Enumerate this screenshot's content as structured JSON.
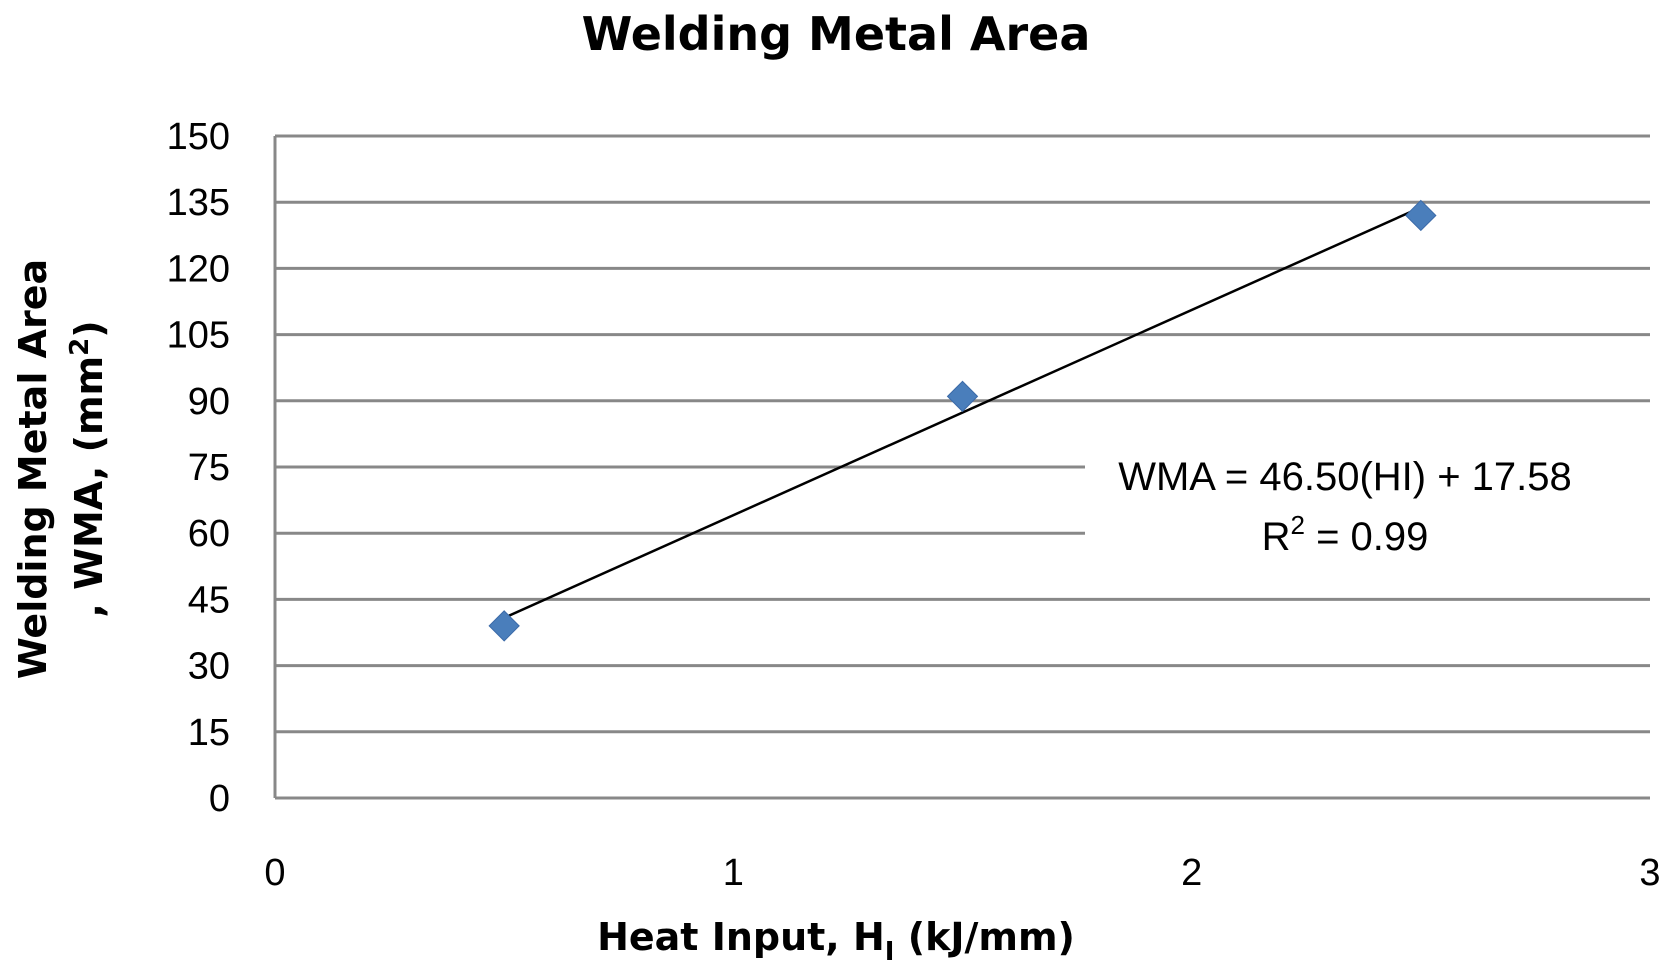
{
  "chart_data": {
    "type": "scatter",
    "title": "Welding Metal Area",
    "xlabel": {
      "main": "Heat Input, H",
      "sub": "I",
      "unit": " (kJ/mm)"
    },
    "ylabel": {
      "line1": "Welding Metal Area",
      "line2": ", WMA, (mm",
      "sup": "2",
      "close": ")"
    },
    "xlim": [
      0,
      3
    ],
    "ylim": [
      0,
      150
    ],
    "xticks": [
      "0",
      "1",
      "2",
      "3"
    ],
    "yticks": [
      "0",
      "15",
      "30",
      "45",
      "60",
      "75",
      "90",
      "105",
      "120",
      "135",
      "150"
    ],
    "grid": true,
    "series": [
      {
        "points": [
          {
            "x": 0.5,
            "y": 39
          },
          {
            "x": 1.5,
            "y": 91
          },
          {
            "x": 2.5,
            "y": 132
          }
        ],
        "color": "#4a7ebb",
        "marker": "diamond"
      }
    ],
    "trendline": {
      "slope": 46.5,
      "intercept": 17.58,
      "x_range": [
        0.5,
        2.5
      ],
      "color": "#000000"
    },
    "annotation": {
      "equation": "WMA = 46.50(HI) + 17.58",
      "r2_prefix": "R",
      "r2_sup": "2",
      "r2_value": " = 0.99"
    }
  }
}
